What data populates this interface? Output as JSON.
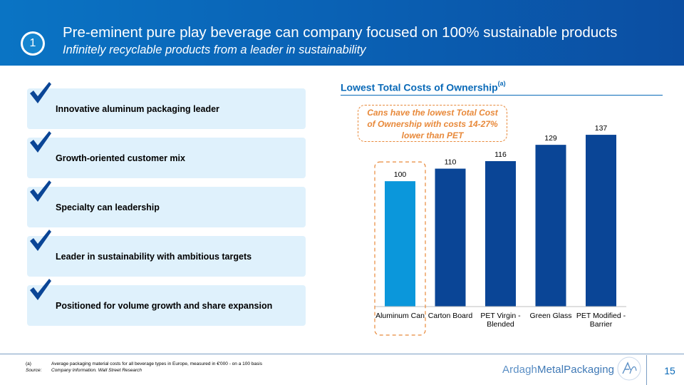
{
  "header": {
    "title": "Pre-eminent pure play beverage can company focused on 100% sustainable products",
    "subtitle": "Infinitely recyclable products from a leader in sustainability",
    "section_number": "1"
  },
  "points": [
    {
      "label": "Innovative aluminum packaging leader",
      "icon": "checkmark-icon"
    },
    {
      "label": "Growth-oriented customer mix",
      "icon": "checkmark-icon"
    },
    {
      "label": "Specialty can leadership",
      "icon": "checkmark-icon"
    },
    {
      "label": "Leader in sustainability with ambitious targets",
      "icon": "checkmark-icon"
    },
    {
      "label": "Positioned for volume growth and share expansion",
      "icon": "checkmark-icon"
    }
  ],
  "chart_heading": {
    "text": "Lowest Total Costs of Ownership",
    "sup": "(a)"
  },
  "callout": {
    "line1": "Cans have the lowest Total Cost",
    "line2": "of Ownership with costs 14-27%",
    "line3": "lower than PET"
  },
  "chart_data": {
    "type": "bar",
    "title": "Lowest Total Costs of Ownership(a)",
    "categories": [
      [
        "Aluminum Can"
      ],
      [
        "Carton Board"
      ],
      [
        "PET Virgin -",
        "Blended"
      ],
      [
        "Green Glass"
      ],
      [
        "PET Modified -",
        "Barrier"
      ]
    ],
    "values": [
      100,
      110,
      116,
      129,
      137
    ],
    "data_labels": [
      "100",
      "110",
      "116",
      "129",
      "137"
    ],
    "ylim": [
      0,
      145
    ],
    "grid": false,
    "legend": "none",
    "highlight_index": 0,
    "colors": {
      "highlight": "#0b97db",
      "default": "#0a4596",
      "callout_border": "#e8893a"
    }
  },
  "footer": {
    "footnotes": [
      {
        "key": "(a)",
        "text": "Average packaging material costs for all beverage types in Europe, measured in €'000 - on a 100 basis"
      },
      {
        "key": "Source:",
        "text": "Company Information. Wall Street Research"
      }
    ],
    "brand_part1": "Ardagh",
    "brand_part2": "MetalPackaging",
    "brand_monogram": "AMP",
    "page_number": "15"
  }
}
